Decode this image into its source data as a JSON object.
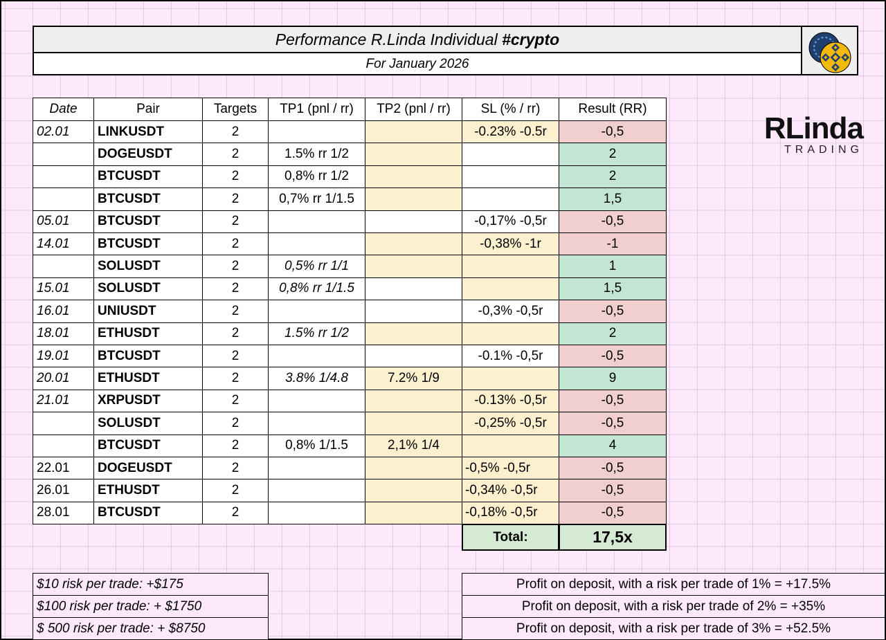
{
  "header": {
    "title": "Performance R.Linda Individual",
    "title_tag": "#crypto",
    "subtitle": "For January 2026"
  },
  "logo": {
    "name": "RLinda",
    "tagline": "TRADING"
  },
  "table": {
    "columns": [
      "Date",
      "Pair",
      "Targets",
      "TP1 (pnl / rr)",
      "TP2 (pnl / rr)",
      "SL (% / rr)",
      "Result (RR)"
    ],
    "rows": [
      [
        "02.01",
        "LINKUSDT",
        "2",
        null,
        null,
        "-0.23% -0.5r",
        "-0,5"
      ],
      [
        null,
        "DOGEUSDT",
        "2",
        "1.5% rr 1/2",
        null,
        null,
        "2"
      ],
      [
        null,
        "BTCUSDT",
        "2",
        "0,8% rr 1/2",
        null,
        null,
        "2"
      ],
      [
        null,
        "BTCUSDT",
        "2",
        "0,7% rr 1/1.5",
        null,
        null,
        "1,5"
      ],
      [
        "05.01",
        "BTCUSDT",
        "2",
        null,
        null,
        "-0,17% -0,5r",
        "-0,5"
      ],
      [
        "14.01",
        "BTCUSDT",
        "2",
        null,
        null,
        "-0,38% -1r",
        "-1"
      ],
      [
        null,
        "SOLUSDT",
        "2",
        "0,5% rr 1/1",
        null,
        null,
        "1"
      ],
      [
        "15.01",
        "SOLUSDT",
        "2",
        "0,8% rr 1/1.5",
        null,
        null,
        "1,5"
      ],
      [
        "16.01",
        "UNIUSDT",
        "2",
        null,
        null,
        "-0,3% -0,5r",
        "-0,5"
      ],
      [
        "18.01",
        "ETHUSDT",
        "2",
        "1.5% rr 1/2",
        null,
        null,
        "2"
      ],
      [
        "19.01",
        "BTCUSDT",
        "2",
        null,
        null,
        "-0.1% -0,5r",
        "-0,5"
      ],
      [
        "20.01",
        "ETHUSDT",
        "2",
        "3.8% 1/4.8",
        "7.2% 1/9",
        null,
        "9"
      ],
      [
        "21.01",
        "XRPUSDT",
        "2",
        null,
        null,
        "-0.13% -0,5r",
        "-0,5"
      ],
      [
        null,
        "SOLUSDT",
        "2",
        null,
        null,
        "-0,25% -0,5r",
        "-0,5"
      ],
      [
        null,
        "BTCUSDT",
        "2",
        "0,8% 1/1.5",
        "2,1% 1/4",
        null,
        "4"
      ],
      [
        "22.01",
        "DOGEUSDT",
        "2",
        null,
        null,
        "-0,5% -0,5r",
        "-0,5"
      ],
      [
        "26.01",
        "ETHUSDT",
        "2",
        null,
        null,
        "-0,34% -0,5r",
        "-0,5"
      ],
      [
        "28.01",
        "BTCUSDT",
        "2",
        null,
        null,
        "-0,18% -0,5r",
        "-0,5"
      ]
    ],
    "total": {
      "label": "Total:",
      "value": "17,5x"
    }
  },
  "summary": {
    "left": [
      "$10 risk per trade: +$175",
      "$100 risk per trade: + $1750",
      "$ 500 risk per trade: + $8750"
    ],
    "right": [
      "Profit on deposit, with a risk per trade of 1% = +17.5%",
      "Profit on deposit, with a risk per trade of 2% = +35%",
      "Profit on deposit, with a risk per trade of 3% = +52.5%"
    ]
  }
}
